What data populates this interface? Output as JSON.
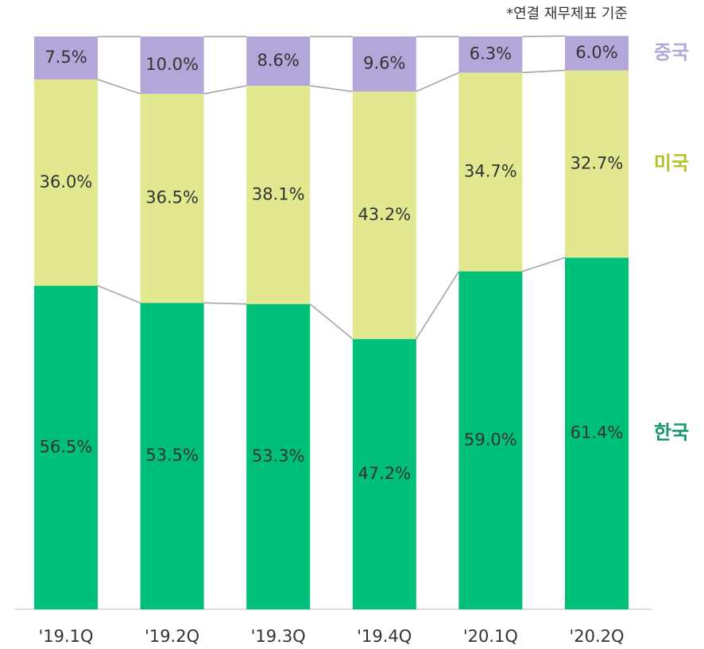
{
  "chart_data": {
    "type": "stacked_bar",
    "note": "*연결 재무제표 기준",
    "categories": [
      "'19.1Q",
      "'19.2Q",
      "'19.3Q",
      "'19.4Q",
      "'20.1Q",
      "'20.2Q"
    ],
    "ylim": [
      0,
      100
    ],
    "series": [
      {
        "name": "한국",
        "color": "#00bf78",
        "label_color": "#1a9a6a",
        "values": [
          56.5,
          53.5,
          53.3,
          47.2,
          59.0,
          61.4
        ],
        "value_labels": [
          "56.5%",
          "53.5%",
          "53.3%",
          "47.2%",
          "59.0%",
          "61.4%"
        ]
      },
      {
        "name": "미국",
        "color": "#e1e88f",
        "label_color": "#b5c22a",
        "values": [
          36.0,
          36.5,
          38.1,
          43.2,
          34.7,
          32.7
        ],
        "value_labels": [
          "36.0%",
          "36.5%",
          "38.1%",
          "43.2%",
          "34.7%",
          "32.7%"
        ]
      },
      {
        "name": "중국",
        "color": "#b3a6d9",
        "label_color": "#b3a6d9",
        "values": [
          7.5,
          10.0,
          8.6,
          9.6,
          6.3,
          6.0
        ],
        "value_labels": [
          "7.5%",
          "10.0%",
          "8.6%",
          "9.6%",
          "6.3%",
          "6.0%"
        ]
      }
    ]
  }
}
